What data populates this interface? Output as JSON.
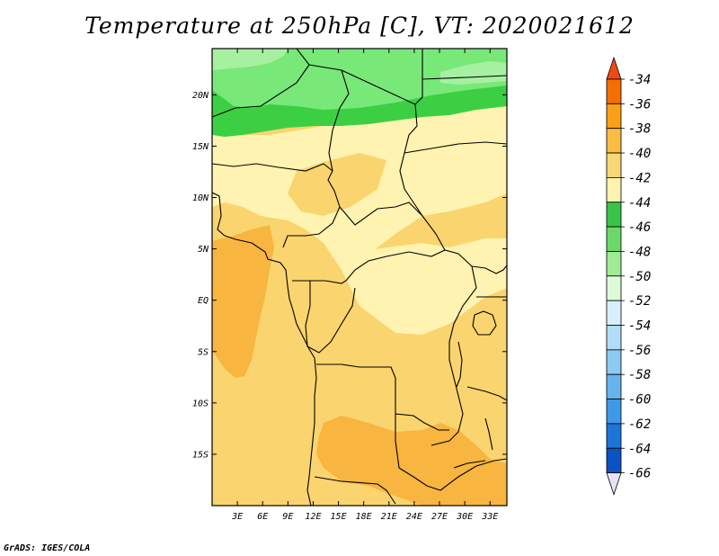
{
  "map": {
    "title": "Temperature at 250hPa [C], VT: 2020021612",
    "variable": "Temperature",
    "level": "250hPa",
    "units": "C",
    "valid_time": "2020021612",
    "credit": "GrADS: IGES/COLA",
    "lat_labels": [
      "20N",
      "15N",
      "10N",
      "5N",
      "EQ",
      "5S",
      "10S",
      "15S"
    ],
    "lat_values": [
      20,
      15,
      10,
      5,
      0,
      -5,
      -10,
      -15
    ],
    "lon_labels": [
      "3E",
      "6E",
      "9E",
      "12E",
      "15E",
      "18E",
      "21E",
      "24E",
      "27E",
      "30E",
      "33E"
    ],
    "lon_values": [
      3,
      6,
      9,
      12,
      15,
      18,
      21,
      24,
      27,
      30,
      33
    ],
    "lat_range": [
      -20,
      24.5
    ],
    "lon_range": [
      0,
      35
    ]
  },
  "legend": {
    "labels": [
      "-34",
      "-36",
      "-38",
      "-40",
      "-42",
      "-44",
      "-46",
      "-48",
      "-50",
      "-52",
      "-54",
      "-56",
      "-58",
      "-60",
      "-62",
      "-64",
      "-66"
    ],
    "colors": [
      "#f24a14",
      "#f56e00",
      "#f8a118",
      "#f9bd43",
      "#fad775",
      "#fef3b0",
      "#3ac34a",
      "#6cd86a",
      "#a0eb96",
      "#ddfadb",
      "#d8efff",
      "#b2ddf8",
      "#8ccaf4",
      "#66b3ee",
      "#3e9ae7",
      "#1c76d8",
      "#0c52c2",
      "#0a2a7e"
    ]
  },
  "colors": {
    "orange_dark": "#f8b540",
    "orange": "#fad46e",
    "yellow_light": "#fef3b0",
    "green_light": "#a6f0a2",
    "green_mid": "#78e878",
    "green_dark": "#3ccf44",
    "border": "#000000"
  }
}
